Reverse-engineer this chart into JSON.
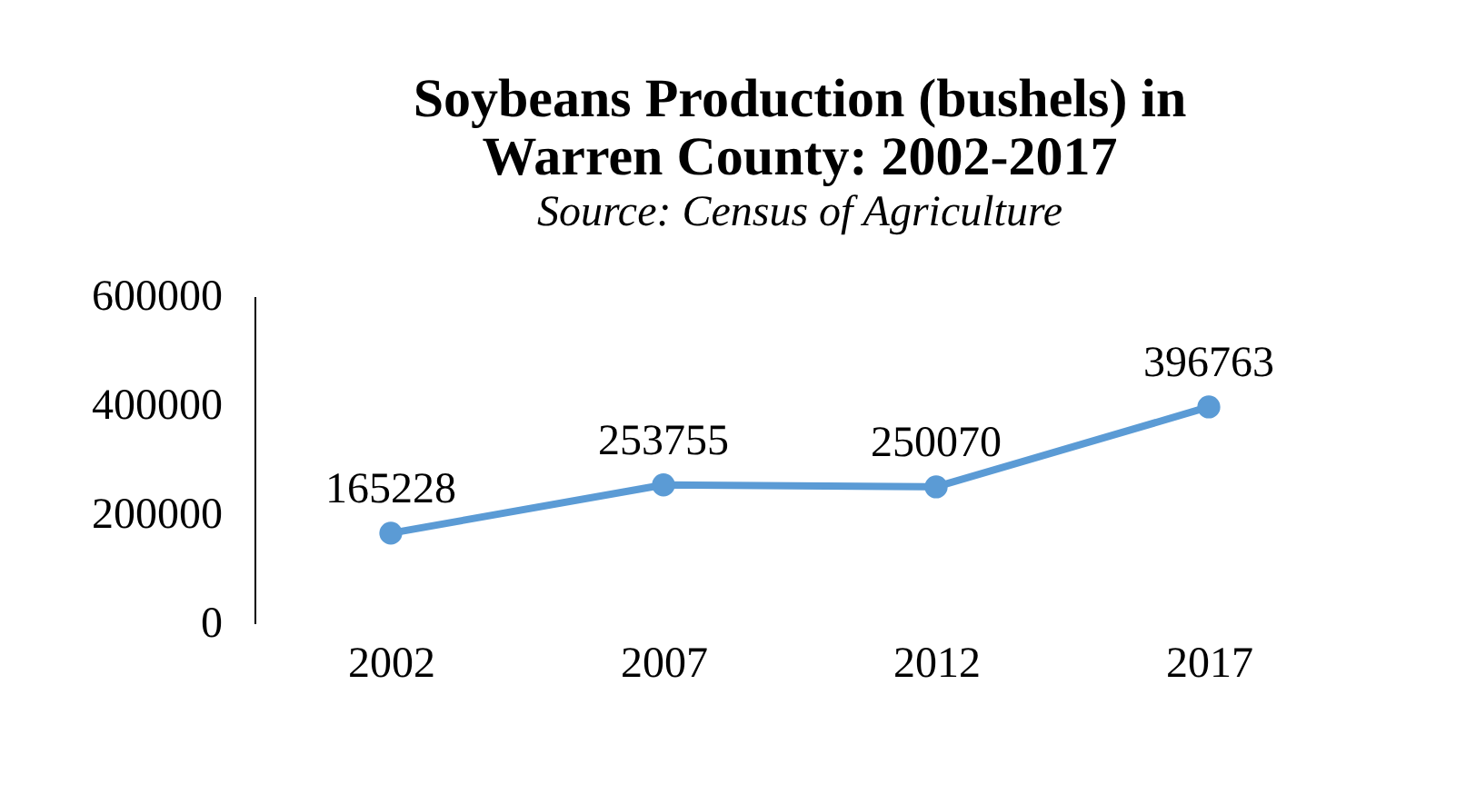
{
  "chart_data": {
    "type": "line",
    "title": "Soybeans Production (bushels) in Warren County: 2002-2017",
    "subtitle": "Source: Census of Agriculture",
    "categories": [
      "2002",
      "2007",
      "2012",
      "2017"
    ],
    "series": [
      {
        "color": "#5b9bd5",
        "values": [
          165228,
          253755,
          250070,
          396763
        ]
      }
    ],
    "ylim": [
      0,
      600000
    ],
    "yticks": [
      0,
      200000,
      400000,
      600000
    ],
    "grid": false,
    "marker": "circle",
    "line_style": "solid",
    "data_labels": true
  }
}
